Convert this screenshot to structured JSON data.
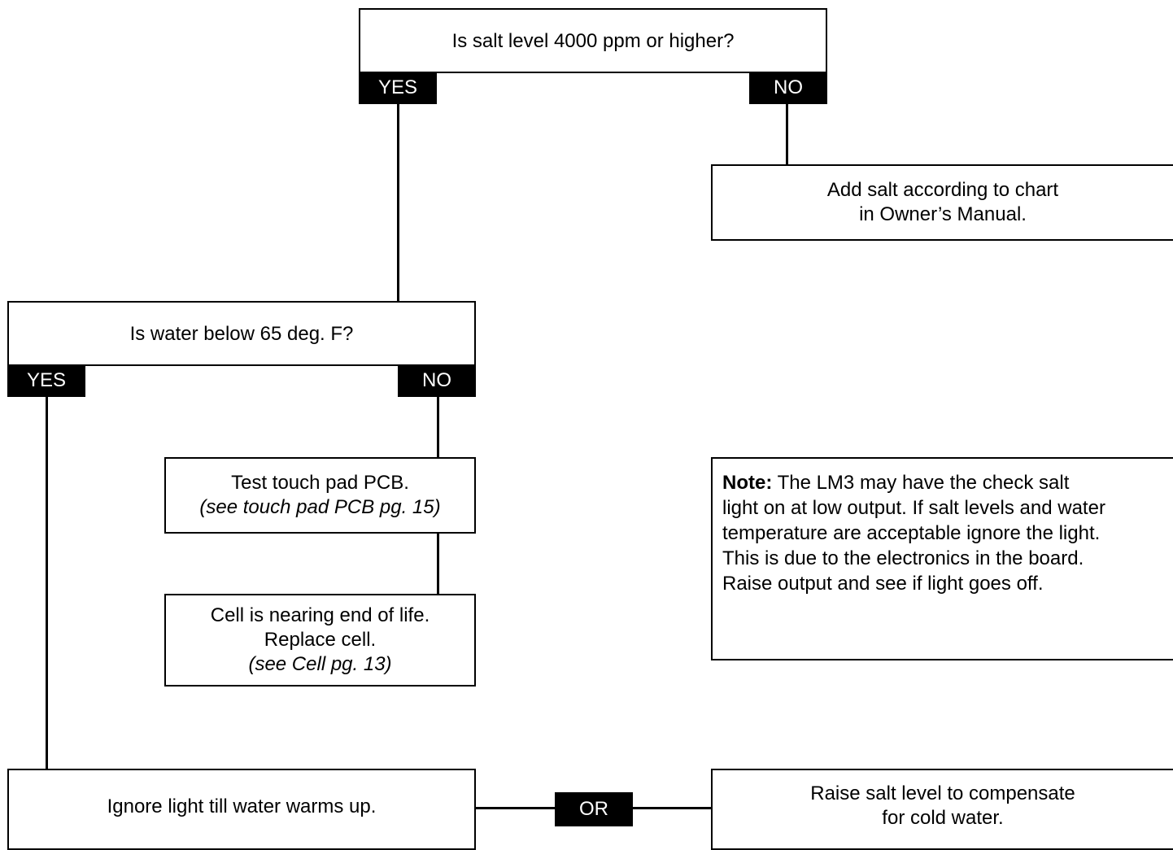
{
  "nodes": {
    "q_salt": {
      "text": "Is salt level 4000 ppm or higher?",
      "yes": "YES",
      "no": "NO"
    },
    "add_salt": {
      "line1": "Add salt according to chart",
      "line2": "in Owner’s Manual."
    },
    "q_water": {
      "text": "Is water below 65 deg. F?",
      "yes": "YES",
      "no": "NO"
    },
    "test_pad": {
      "line1": "Test touch pad PCB.",
      "ref": "(see touch pad PCB pg. 15)"
    },
    "cell_end": {
      "line1": "Cell is nearing end of life.",
      "line2": "Replace cell.",
      "ref": "(see Cell pg. 13)"
    },
    "ignore_light": {
      "text": "Ignore light till water warms up."
    },
    "or_label": "OR",
    "raise_salt": {
      "line1": "Raise salt level to compensate",
      "line2": "for cold water."
    }
  },
  "note": {
    "label": "Note:",
    "lines": [
      " The LM3 may have the check salt",
      "light on at low output. If salt levels and water",
      "temperature are acceptable ignore the light.",
      "This is due to the electronics in the board.",
      "Raise output and see if light goes off."
    ]
  },
  "colors": {
    "line": "#000000",
    "tag_bg": "#000000",
    "tag_text": "#ffffff",
    "background": "#ffffff"
  }
}
